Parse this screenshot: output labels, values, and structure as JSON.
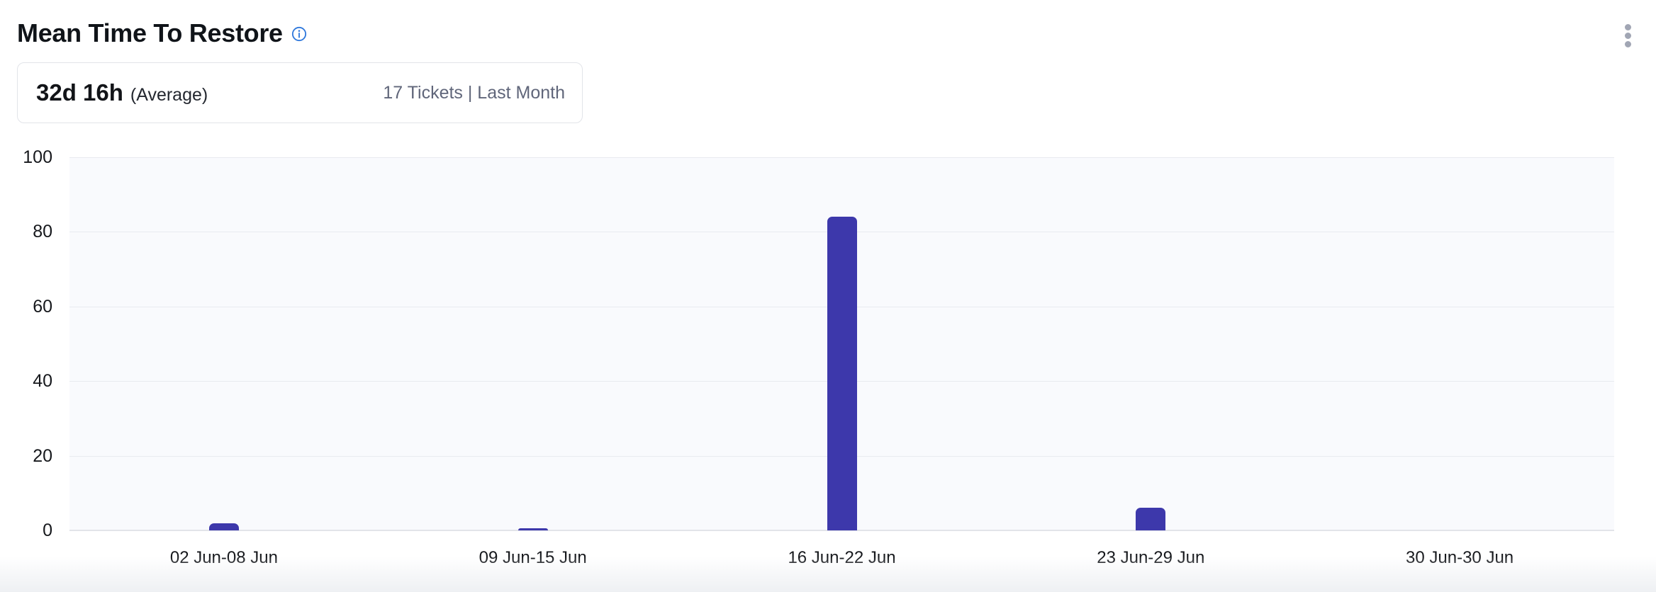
{
  "header": {
    "title": "Mean Time To Restore"
  },
  "summary": {
    "value": "32d 16h",
    "value_suffix": "(Average)",
    "meta": "17 Tickets | Last Month"
  },
  "icons": {
    "info": "info-icon",
    "menu": "kebab-menu-icon"
  },
  "colors": {
    "bar": "#3d38ab",
    "plot_background": "#f9fafd",
    "gridline": "#e9ebf0",
    "baseline": "#e2e4e9",
    "info_icon": "#2f78dc",
    "kebab_dots": "#a1a6b4",
    "axis_text": "#16181c",
    "meta_text": "#60667a"
  },
  "chart_data": {
    "type": "bar",
    "title": "Mean Time To Restore",
    "categories": [
      "02 Jun-08 Jun",
      "09 Jun-15 Jun",
      "16 Jun-22 Jun",
      "23 Jun-29 Jun",
      "30 Jun-30 Jun"
    ],
    "values": [
      2,
      0.5,
      84,
      6,
      0
    ],
    "xlabel": "",
    "ylabel": "",
    "ylim": [
      0,
      100
    ],
    "yticks": [
      0,
      20,
      40,
      60,
      80,
      100
    ],
    "grid": true,
    "legend": false,
    "bar_color": "#3d38ab"
  }
}
